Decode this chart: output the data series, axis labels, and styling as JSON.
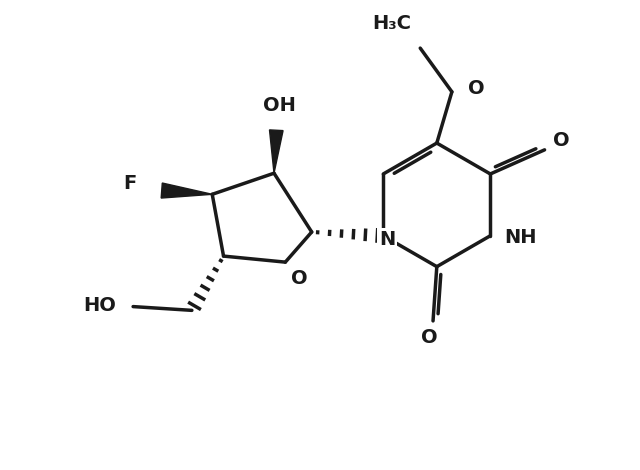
{
  "bg_color": "#ffffff",
  "line_color": "#1a1a1a",
  "line_width": 2.5,
  "font_size": 14,
  "figsize": [
    6.4,
    4.7
  ],
  "dpi": 100,
  "xlim": [
    0,
    8.0
  ],
  "ylim": [
    0,
    6.2
  ]
}
